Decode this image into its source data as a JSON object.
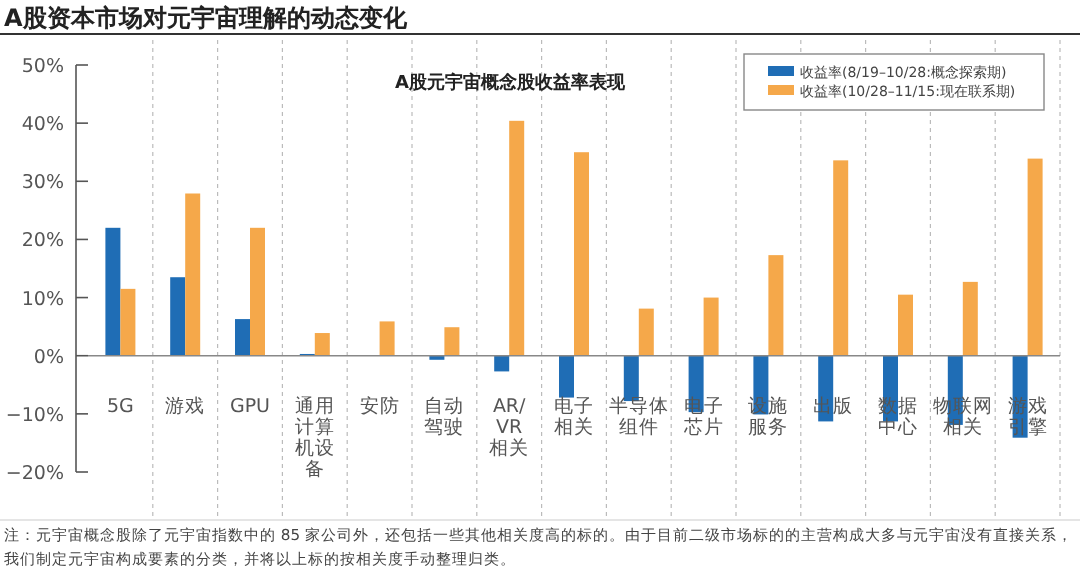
{
  "chart_data": {
    "type": "bar",
    "title": "A股资本市场对元宇宙理解的动态变化",
    "subtitle": "A股元宇宙概念股收益率表现",
    "categories": [
      "5G",
      "游戏",
      "GPU",
      "通用计算机设备",
      "安防",
      "自动驾驶",
      "AR/VR相关",
      "电子相关",
      "半导体组件",
      "电子芯片",
      "设施服务",
      "出版",
      "数据中心",
      "物联网相关",
      "游戏引擎"
    ],
    "series": [
      {
        "name": "收益率(8/19–10/28:概念探索期)",
        "color": "#1f6db5",
        "values": [
          22.0,
          13.5,
          6.3,
          0.3,
          null,
          -0.7,
          -2.7,
          -7.2,
          -7.8,
          -9.7,
          -10.1,
          -11.3,
          -11.3,
          -11.9,
          -14.1
        ]
      },
      {
        "name": "收益率(10/28–11/15:现在联系期)",
        "color": "#f5a84a",
        "values": [
          11.5,
          27.9,
          22.0,
          3.9,
          5.9,
          4.9,
          40.4,
          35.0,
          8.1,
          10.0,
          17.3,
          33.6,
          10.5,
          12.7,
          33.9
        ]
      }
    ],
    "ylim": [
      -20,
      50
    ],
    "yticks": [
      {
        "value": -20,
        "label": "−20%"
      },
      {
        "value": -10,
        "label": "−10%"
      },
      {
        "value": 0,
        "label": "0%"
      },
      {
        "value": 10,
        "label": "10%"
      },
      {
        "value": 20,
        "label": "20%"
      },
      {
        "value": 30,
        "label": "30%"
      },
      {
        "value": 40,
        "label": "40%"
      },
      {
        "value": 50,
        "label": "50%"
      }
    ],
    "grid": "x",
    "legend": "top right",
    "annotations": [
      "注：元宇宙概念股除了元宇宙指数中的 85 家公司外，还包括一些其他相关度高的标的。由于目前二级市场标的的主营构成大多与元宇宙没有直接关系，我们制定元宇宙构成要素的分类，并将以上标的按相关度手动整理归类。"
    ]
  }
}
